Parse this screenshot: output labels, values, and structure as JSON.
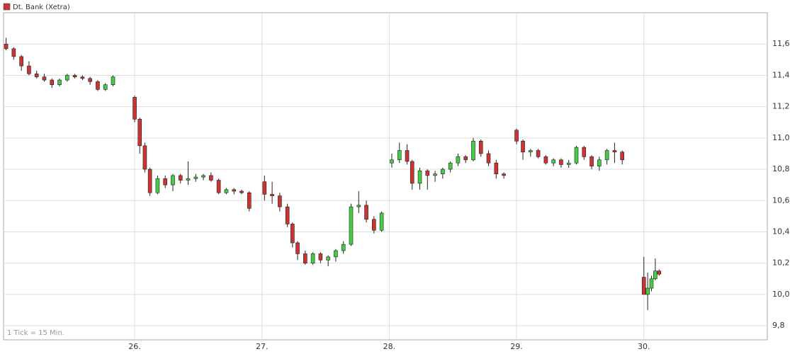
{
  "chart_data": {
    "type": "candlestick",
    "series": [
      {
        "name": "Dt. Bank (Xetra)",
        "color": "#cc3333",
        "up_color": "#44cc44",
        "down_color": "#cc3333",
        "x": [
          24.99,
          25.05,
          25.11,
          25.17,
          25.23,
          25.29,
          25.35,
          25.41,
          25.47,
          25.53,
          25.59,
          25.65,
          25.71,
          25.77,
          25.83,
          26.0,
          26.04,
          26.08,
          26.12,
          26.18,
          26.24,
          26.3,
          26.36,
          26.42,
          26.48,
          26.54,
          26.6,
          26.66,
          26.72,
          26.78,
          26.84,
          26.9,
          27.02,
          27.08,
          27.14,
          27.2,
          27.24,
          27.28,
          27.34,
          27.4,
          27.46,
          27.52,
          27.58,
          27.64,
          27.7,
          27.76,
          27.82,
          27.88,
          27.94,
          28.02,
          28.08,
          28.14,
          28.18,
          28.24,
          28.3,
          28.36,
          28.42,
          28.48,
          28.54,
          28.6,
          28.66,
          28.72,
          28.78,
          28.84,
          28.9,
          29.0,
          29.05,
          29.11,
          29.17,
          29.23,
          29.29,
          29.35,
          29.41,
          29.47,
          29.53,
          29.59,
          29.65,
          29.71,
          29.77,
          29.83,
          30.0,
          30.03,
          30.06,
          30.09,
          30.12
        ],
        "open": [
          11.6,
          11.57,
          11.52,
          11.46,
          11.41,
          11.39,
          11.37,
          11.34,
          11.37,
          11.4,
          11.39,
          11.38,
          11.36,
          11.31,
          11.34,
          11.26,
          11.12,
          10.95,
          10.8,
          10.65,
          10.74,
          10.7,
          10.76,
          10.73,
          10.74,
          10.75,
          10.76,
          10.73,
          10.65,
          10.67,
          10.66,
          10.65,
          10.72,
          10.64,
          10.63,
          10.56,
          10.45,
          10.33,
          10.26,
          10.2,
          10.26,
          10.22,
          10.24,
          10.28,
          10.32,
          10.56,
          10.57,
          10.48,
          10.41,
          10.84,
          10.86,
          10.92,
          10.85,
          10.71,
          10.79,
          10.76,
          10.77,
          10.8,
          10.84,
          10.88,
          10.86,
          10.98,
          10.9,
          10.84,
          10.77,
          11.05,
          10.98,
          10.91,
          10.92,
          10.88,
          10.84,
          10.86,
          10.83,
          10.84,
          10.94,
          10.88,
          10.82,
          10.86,
          10.92,
          10.91,
          10.11,
          10.0,
          10.04,
          10.1,
          10.15
        ],
        "high": [
          11.64,
          11.58,
          11.53,
          11.49,
          11.43,
          11.41,
          11.38,
          11.38,
          11.41,
          11.41,
          11.4,
          11.39,
          11.37,
          11.35,
          11.4,
          11.27,
          11.13,
          10.97,
          10.81,
          10.76,
          10.76,
          10.77,
          10.77,
          10.85,
          10.77,
          10.77,
          10.78,
          10.74,
          10.68,
          10.68,
          10.67,
          10.66,
          10.76,
          10.72,
          10.65,
          10.58,
          10.46,
          10.34,
          10.28,
          10.27,
          10.27,
          10.25,
          10.29,
          10.34,
          10.58,
          10.66,
          10.6,
          10.5,
          10.53,
          10.9,
          10.97,
          10.96,
          10.86,
          10.81,
          10.8,
          10.79,
          10.81,
          10.85,
          10.9,
          10.89,
          11.0,
          10.99,
          10.92,
          10.86,
          10.78,
          11.06,
          10.99,
          10.93,
          10.93,
          10.89,
          10.87,
          10.87,
          10.86,
          10.95,
          10.95,
          10.89,
          10.88,
          10.93,
          10.97,
          10.92,
          10.24,
          10.14,
          10.12,
          10.23,
          10.16
        ],
        "low": [
          11.56,
          11.5,
          11.43,
          11.4,
          11.38,
          11.36,
          11.32,
          11.33,
          11.36,
          11.38,
          11.37,
          11.34,
          11.3,
          11.3,
          11.33,
          11.1,
          10.9,
          10.78,
          10.63,
          10.64,
          10.68,
          10.66,
          10.71,
          10.7,
          10.72,
          10.73,
          10.72,
          10.64,
          10.64,
          10.64,
          10.64,
          10.53,
          10.6,
          10.58,
          10.53,
          10.43,
          10.3,
          10.22,
          10.19,
          10.19,
          10.2,
          10.18,
          10.21,
          10.26,
          10.31,
          10.52,
          10.46,
          10.39,
          10.4,
          10.81,
          10.84,
          10.83,
          10.67,
          10.67,
          10.67,
          10.72,
          10.74,
          10.78,
          10.82,
          10.84,
          10.85,
          10.88,
          10.82,
          10.74,
          10.74,
          10.96,
          10.86,
          10.88,
          10.87,
          10.83,
          10.82,
          10.81,
          10.81,
          10.83,
          10.86,
          10.8,
          10.79,
          10.83,
          10.84,
          10.83,
          10.0,
          9.9,
          10.02,
          10.09,
          10.12
        ],
        "close": [
          11.57,
          11.52,
          11.46,
          11.41,
          11.39,
          11.37,
          11.34,
          11.37,
          11.4,
          11.39,
          11.38,
          11.36,
          11.31,
          11.34,
          11.39,
          11.12,
          10.95,
          10.8,
          10.65,
          10.74,
          10.7,
          10.76,
          10.73,
          10.74,
          10.75,
          10.76,
          10.73,
          10.65,
          10.67,
          10.66,
          10.65,
          10.55,
          10.64,
          10.63,
          10.56,
          10.45,
          10.33,
          10.26,
          10.2,
          10.26,
          10.22,
          10.24,
          10.28,
          10.32,
          10.56,
          10.57,
          10.48,
          10.41,
          10.52,
          10.86,
          10.92,
          10.85,
          10.71,
          10.79,
          10.76,
          10.77,
          10.8,
          10.84,
          10.88,
          10.86,
          10.98,
          10.9,
          10.84,
          10.77,
          10.76,
          10.98,
          10.91,
          10.92,
          10.88,
          10.84,
          10.86,
          10.83,
          10.84,
          10.94,
          10.88,
          10.82,
          10.86,
          10.92,
          10.91,
          10.86,
          10.0,
          10.04,
          10.1,
          10.15,
          10.13
        ]
      }
    ],
    "xlim": [
      24.97,
      30.97
    ],
    "xticks": [
      {
        "value": 26,
        "label": "26."
      },
      {
        "value": 27,
        "label": "27."
      },
      {
        "value": 28,
        "label": "28."
      },
      {
        "value": 29,
        "label": "29."
      },
      {
        "value": 30,
        "label": "30."
      }
    ],
    "ylim": [
      9.71,
      11.8
    ],
    "yticks": [
      {
        "value": 9.8,
        "label": "9,8"
      },
      {
        "value": 10.0,
        "label": "10,0"
      },
      {
        "value": 10.2,
        "label": "10,2"
      },
      {
        "value": 10.4,
        "label": "10,4"
      },
      {
        "value": 10.6,
        "label": "10,6"
      },
      {
        "value": 10.8,
        "label": "10,8"
      },
      {
        "value": 11.0,
        "label": "11,0"
      },
      {
        "value": 11.2,
        "label": "11,2"
      },
      {
        "value": 11.4,
        "label": "11,4"
      },
      {
        "value": 11.6,
        "label": "11,6"
      }
    ],
    "grid": true,
    "legend": "top-left",
    "annotation": "1 Tick = 15 Min."
  }
}
